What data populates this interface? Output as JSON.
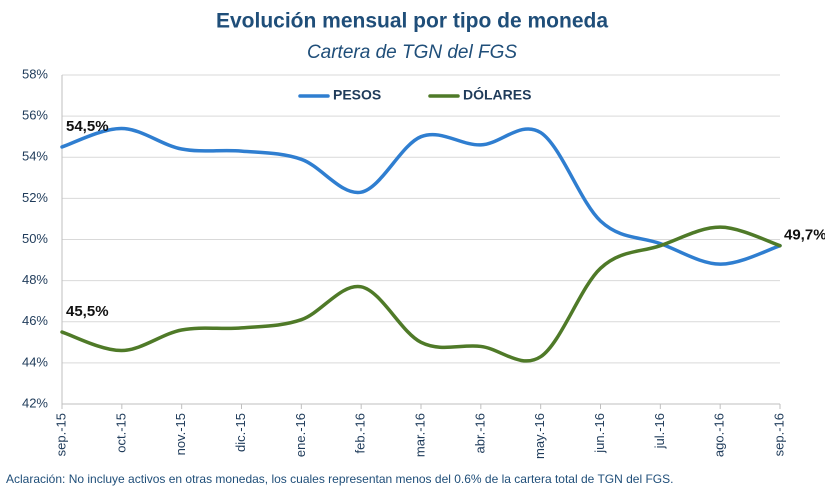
{
  "chart_data": {
    "type": "line",
    "title": "Evolución mensual por tipo de moneda",
    "subtitle": "Cartera de TGN del FGS",
    "note": "Aclaración: No incluye activos en otras monedas, los cuales representan menos del 0.6% de la cartera total de TGN del FGS.",
    "categories": [
      "sep.-15",
      "oct.-15",
      "nov.-15",
      "dic.-15",
      "ene.-16",
      "feb.-16",
      "mar.-16",
      "abr.-16",
      "may.-16",
      "jun.-16",
      "jul.-16",
      "ago.-16",
      "sep.-16"
    ],
    "series": [
      {
        "name": "PESOS",
        "color": "#2f7ed0",
        "values": [
          54.5,
          55.4,
          54.4,
          54.3,
          53.9,
          52.3,
          55.0,
          54.6,
          55.2,
          50.9,
          49.8,
          48.8,
          49.7
        ],
        "value_labels": [
          "54,5%",
          null,
          null,
          null,
          null,
          null,
          null,
          null,
          null,
          null,
          null,
          null,
          "49,7%"
        ]
      },
      {
        "name": "DÓLARES",
        "color": "#4f7a28",
        "values": [
          45.5,
          44.6,
          45.6,
          45.7,
          46.1,
          47.7,
          45.0,
          44.8,
          44.3,
          48.6,
          49.7,
          50.6,
          49.7
        ],
        "value_labels": [
          "45,5%",
          null,
          null,
          null,
          null,
          null,
          null,
          null,
          null,
          null,
          null,
          null,
          null
        ]
      }
    ],
    "ylim": [
      42,
      58
    ],
    "yticks": [
      {
        "value": 42,
        "label": "42%"
      },
      {
        "value": 44,
        "label": "44%"
      },
      {
        "value": 46,
        "label": "46%"
      },
      {
        "value": 48,
        "label": "48%"
      },
      {
        "value": 50,
        "label": "50%"
      },
      {
        "value": 52,
        "label": "52%"
      },
      {
        "value": 54,
        "label": "54%"
      },
      {
        "value": 56,
        "label": "56%"
      },
      {
        "value": 58,
        "label": "58%"
      }
    ],
    "grid": true,
    "legend": "top"
  }
}
